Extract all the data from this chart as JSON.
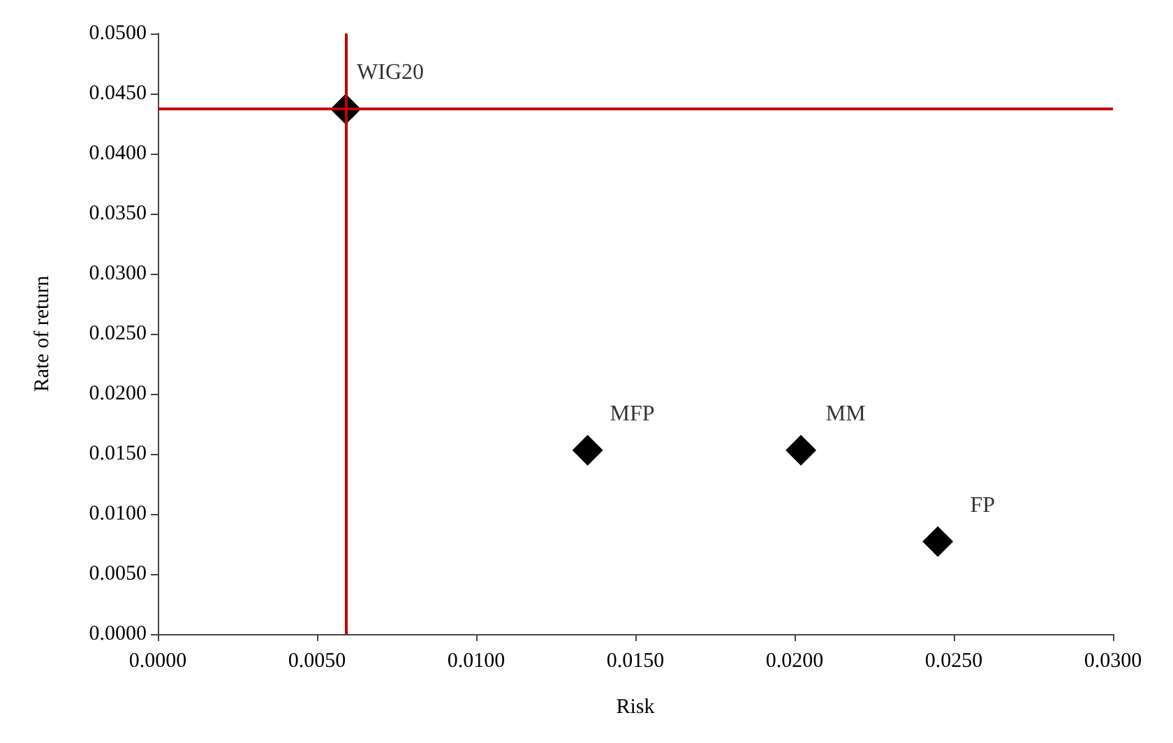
{
  "chart_data": {
    "type": "scatter",
    "xlabel": "Risk",
    "ylabel": "Rate of return",
    "x": [
      0.0059,
      0.0135,
      0.0202,
      0.0245
    ],
    "series": [
      {
        "color": "#000000",
        "values": [
          0.0437,
          0.0153,
          0.0153,
          0.0077
        ]
      }
    ],
    "marker": "diamond",
    "grid": false,
    "xlim": [
      0,
      0.03
    ],
    "xticks": [
      {
        "value": 0,
        "label": "0.0000"
      },
      {
        "value": 0.005,
        "label": "0.0050"
      },
      {
        "value": 0.01,
        "label": "0.0100"
      },
      {
        "value": 0.015,
        "label": "0.0150"
      },
      {
        "value": 0.02,
        "label": "0.0200"
      },
      {
        "value": 0.025,
        "label": "0.0250"
      },
      {
        "value": 0.03,
        "label": "0.0300"
      }
    ],
    "ylim": [
      0,
      0.05
    ],
    "yticks": [
      {
        "value": 0,
        "label": "0.0000"
      },
      {
        "value": 0.005,
        "label": "0.0050"
      },
      {
        "value": 0.01,
        "label": "0.0100"
      },
      {
        "value": 0.015,
        "label": "0.0150"
      },
      {
        "value": 0.02,
        "label": "0.0200"
      },
      {
        "value": 0.025,
        "label": "0.0250"
      },
      {
        "value": 0.03,
        "label": "0.0300"
      },
      {
        "value": 0.035,
        "label": "0.0350"
      },
      {
        "value": 0.04,
        "label": "0.0400"
      },
      {
        "value": 0.045,
        "label": "0.0450"
      },
      {
        "value": 0.05,
        "label": "0.0500"
      }
    ],
    "ref_lines": [
      {
        "axis": "x",
        "value": 0.0059,
        "color": "#c00000"
      },
      {
        "axis": "y",
        "value": 0.0437,
        "color": "#c00000"
      }
    ],
    "annotations": [
      {
        "text": "WIG20",
        "x": 0.0059,
        "y": 0.0437
      },
      {
        "text": "MFP",
        "x": 0.0135,
        "y": 0.0153
      },
      {
        "text": "MM",
        "x": 0.0202,
        "y": 0.0153
      },
      {
        "text": "FP",
        "x": 0.0245,
        "y": 0.0077
      }
    ]
  }
}
